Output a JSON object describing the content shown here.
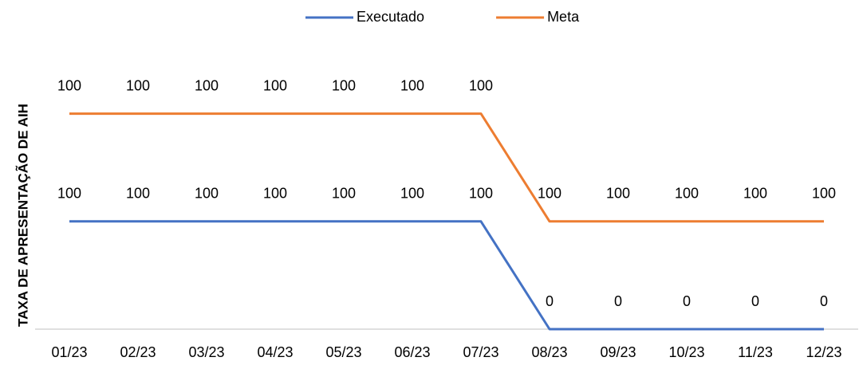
{
  "chart_data": {
    "type": "line",
    "stacked": true,
    "y_label": "TAXA DE APRESENTAÇÃO DE AIH",
    "categories": [
      "01/23",
      "02/23",
      "03/23",
      "04/23",
      "05/23",
      "06/23",
      "07/23",
      "08/23",
      "09/23",
      "10/23",
      "11/23",
      "12/23"
    ],
    "series": [
      {
        "name": "Executado",
        "color": "#4472c4",
        "values": [
          100,
          100,
          100,
          100,
          100,
          100,
          100,
          0,
          0,
          0,
          0,
          0
        ]
      },
      {
        "name": "Meta",
        "color": "#ed7d31",
        "values": [
          100,
          100,
          100,
          100,
          100,
          100,
          100,
          100,
          100,
          100,
          100,
          100
        ]
      }
    ],
    "ylim": [
      0,
      250
    ],
    "legend": "top",
    "data_labels": true
  }
}
